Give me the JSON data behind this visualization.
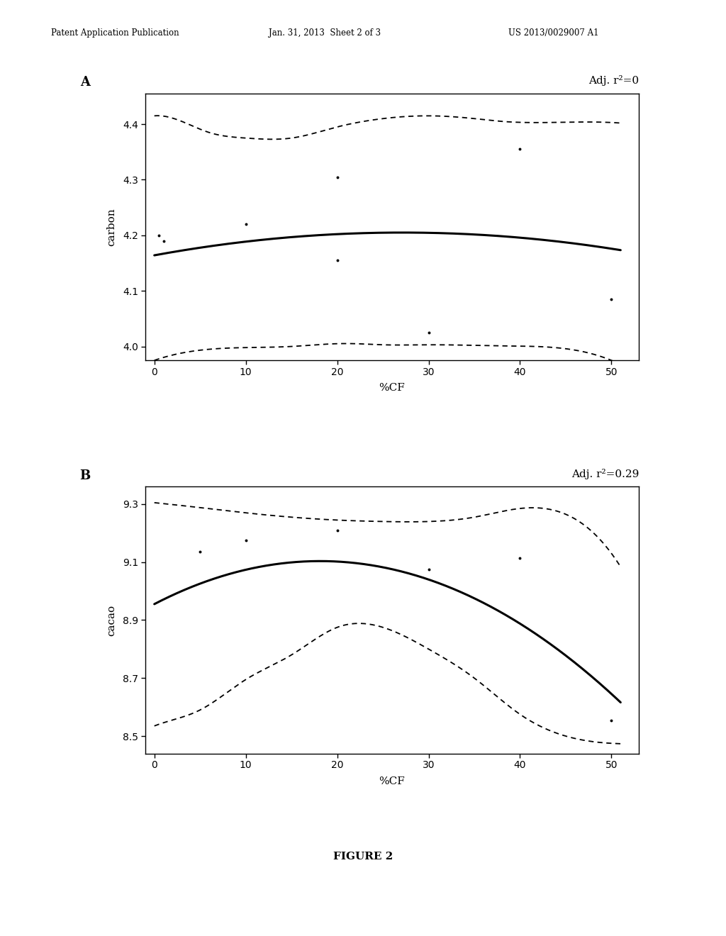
{
  "header_left": "Patent Application Publication",
  "header_center": "Jan. 31, 2013  Sheet 2 of 3",
  "header_right": "US 2013/0029007 A1",
  "figure_label": "FIGURE 2",
  "plot_A": {
    "label": "A",
    "adj_r2": "Adj. r²=0",
    "ylabel": "carbon",
    "xlabel": "%CF",
    "xlim": [
      -1,
      53
    ],
    "ylim": [
      3.975,
      4.455
    ],
    "yticks": [
      4.0,
      4.1,
      4.2,
      4.3,
      4.4
    ],
    "xticks": [
      0,
      10,
      20,
      30,
      40,
      50
    ],
    "mean_curve_x": [
      0,
      5,
      10,
      15,
      20,
      25,
      30,
      35,
      40,
      45,
      50
    ],
    "mean_curve_y": [
      4.163,
      4.177,
      4.189,
      4.198,
      4.204,
      4.206,
      4.205,
      4.2,
      4.193,
      4.183,
      4.181
    ],
    "upper_ci_x": [
      0,
      3,
      6,
      10,
      15,
      20,
      25,
      30,
      35,
      38,
      43,
      50
    ],
    "upper_ci_y": [
      4.415,
      4.405,
      4.385,
      4.375,
      4.375,
      4.395,
      4.41,
      4.415,
      4.41,
      4.405,
      4.403,
      4.403
    ],
    "lower_ci_x": [
      0,
      10,
      15,
      20,
      22,
      25,
      30,
      35,
      38,
      43,
      50
    ],
    "lower_ci_y": [
      3.975,
      3.998,
      4.0,
      4.005,
      4.005,
      4.003,
      4.003,
      4.002,
      4.001,
      3.999,
      3.975
    ],
    "scatter_x": [
      0.5,
      1.0,
      10,
      20,
      20,
      30,
      40,
      50
    ],
    "scatter_y": [
      4.2,
      4.19,
      4.22,
      4.155,
      4.305,
      4.025,
      4.355,
      4.085
    ]
  },
  "plot_B": {
    "label": "B",
    "adj_r2": "Adj. r²=0.29",
    "ylabel": "cacao",
    "xlabel": "%CF",
    "xlim": [
      -1,
      53
    ],
    "ylim": [
      8.44,
      9.36
    ],
    "yticks": [
      8.5,
      8.7,
      8.9,
      9.1,
      9.3
    ],
    "xticks": [
      0,
      10,
      20,
      30,
      40,
      50
    ],
    "mean_curve_x": [
      0,
      5,
      10,
      15,
      20,
      25,
      30,
      35,
      40,
      45,
      50
    ],
    "mean_curve_y": [
      8.955,
      9.025,
      9.068,
      9.095,
      9.11,
      9.095,
      9.048,
      8.975,
      8.872,
      8.748,
      8.673
    ],
    "upper_ci_x": [
      0,
      3,
      5,
      10,
      15,
      20,
      25,
      30,
      35,
      40,
      45,
      50
    ],
    "upper_ci_y": [
      9.305,
      9.295,
      9.288,
      9.27,
      9.255,
      9.245,
      9.24,
      9.24,
      9.255,
      9.285,
      9.265,
      9.13
    ],
    "lower_ci_x": [
      0,
      3,
      5,
      10,
      15,
      20,
      25,
      30,
      35,
      40,
      45,
      50
    ],
    "lower_ci_y": [
      8.535,
      8.565,
      8.59,
      8.695,
      8.78,
      8.875,
      8.875,
      8.8,
      8.7,
      8.575,
      8.5,
      8.475
    ],
    "scatter_x": [
      5,
      10,
      20,
      30,
      40,
      50
    ],
    "scatter_y": [
      9.135,
      9.175,
      9.21,
      9.075,
      9.115,
      8.555
    ]
  },
  "background_color": "#ffffff",
  "line_color": "#000000",
  "scatter_color": "#000000"
}
